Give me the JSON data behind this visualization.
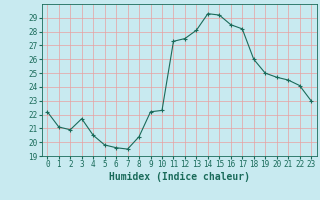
{
  "xlabel": "Humidex (Indice chaleur)",
  "x": [
    0,
    1,
    2,
    3,
    4,
    5,
    6,
    7,
    8,
    9,
    10,
    11,
    12,
    13,
    14,
    15,
    16,
    17,
    18,
    19,
    20,
    21,
    22,
    23
  ],
  "y": [
    22.2,
    21.1,
    20.9,
    21.7,
    20.5,
    19.8,
    19.6,
    19.5,
    20.4,
    22.2,
    22.3,
    27.3,
    27.5,
    28.1,
    29.3,
    29.2,
    28.5,
    28.2,
    26.0,
    25.0,
    24.7,
    24.5,
    24.1,
    23.0
  ],
  "ylim": [
    19,
    30
  ],
  "xlim": [
    -0.5,
    23.5
  ],
  "yticks": [
    19,
    20,
    21,
    22,
    23,
    24,
    25,
    26,
    27,
    28,
    29
  ],
  "xticks": [
    0,
    1,
    2,
    3,
    4,
    5,
    6,
    7,
    8,
    9,
    10,
    11,
    12,
    13,
    14,
    15,
    16,
    17,
    18,
    19,
    20,
    21,
    22,
    23
  ],
  "line_color": "#1a6b5a",
  "marker": "+",
  "marker_size": 3,
  "bg_color": "#c8eaf0",
  "grid_color": "#e8a0a0",
  "font_color": "#1a6b5a",
  "font_family": "monospace",
  "tick_fontsize": 5.5,
  "xlabel_fontsize": 7
}
